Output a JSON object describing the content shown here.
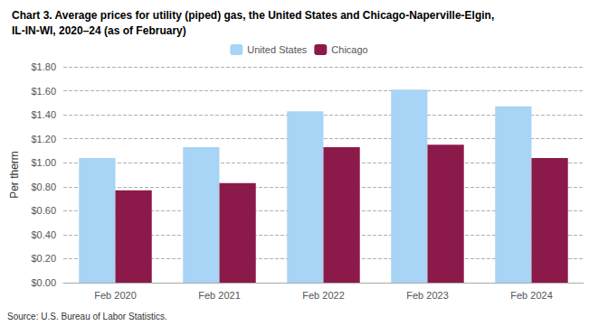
{
  "chart_data": {
    "type": "bar",
    "title": "Chart 3. Average prices for utility (piped) gas, the United States and Chicago-Naperville-Elgin,",
    "subtitle": "IL-IN-WI, 2020–24 (as of February)",
    "ylabel": "Per therm",
    "annotations": [
      "Source: U.S. Bureau of Labor Statistics."
    ],
    "categories": [
      "Feb 2020",
      "Feb 2021",
      "Feb 2022",
      "Feb 2023",
      "Feb 2024"
    ],
    "series": [
      {
        "name": "United States",
        "color": "#a8d4f5",
        "values": [
          1.04,
          1.13,
          1.43,
          1.61,
          1.47
        ]
      },
      {
        "name": "Chicago",
        "color": "#8b1a4a",
        "values": [
          0.77,
          0.83,
          1.13,
          1.15,
          1.04
        ]
      }
    ],
    "ylim": [
      0,
      1.8
    ],
    "yticks": [
      {
        "value": 0,
        "label": "$0.00"
      },
      {
        "value": 0.2,
        "label": "$0.20"
      },
      {
        "value": 0.4,
        "label": "$0.40"
      },
      {
        "value": 0.6,
        "label": "$0.60"
      },
      {
        "value": 0.8,
        "label": "$0.80"
      },
      {
        "value": 1,
        "label": "$1.00"
      },
      {
        "value": 1.2,
        "label": "$1.20"
      },
      {
        "value": 1.4,
        "label": "$1.40"
      },
      {
        "value": 1.6,
        "label": "$1.60"
      },
      {
        "value": 1.8,
        "label": "$1.80"
      }
    ],
    "grid": true,
    "legend": "top"
  }
}
